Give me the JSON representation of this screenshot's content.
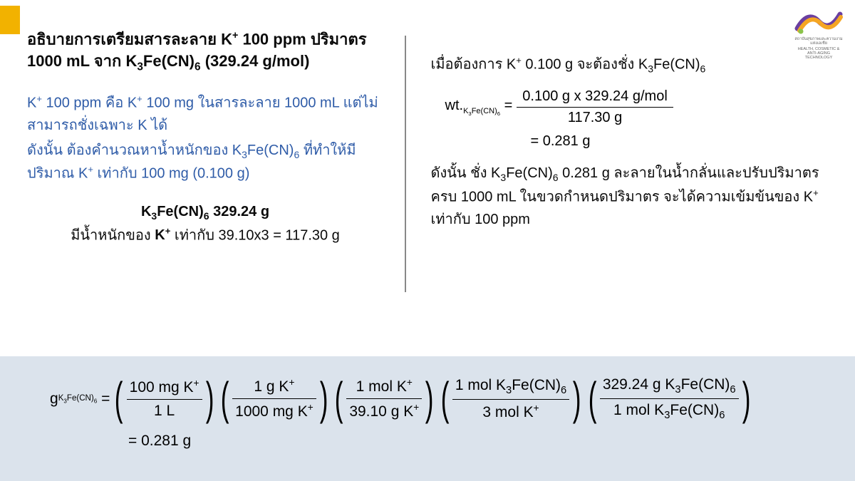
{
  "accent_color": "#f2b200",
  "logo": {
    "colors": {
      "purple": "#6b3fa0",
      "orange": "#f5a623",
      "green": "#8bc34a"
    },
    "caption1": "สถาบันสุขภาพและความงามแห่งเอเชีย",
    "caption2": "HEALTH, COSMETIC & ANTI-AGING TECHNOLOGY"
  },
  "left": {
    "title": "อธิบายการเตรียมสารละลาย K⁺ 100 ppm ปริมาตร 1000 mL จาก K₃Fe(CN)₆ (329.24 g/mol)",
    "blue1": "K⁺ 100 ppm คือ K⁺ 100 mg ในสารละลาย 1000 mL แต่ไม่สามารถชั่งเฉพาะ K ได้",
    "blue2": "ดังนั้น ต้องคำนวณหาน้ำหนักของ K₃Fe(CN)₆ ที่ทำให้มีปริมาณ K⁺ เท่ากับ 100 mg (0.100 g)",
    "center1": "K₃Fe(CN)₆ 329.24 g",
    "center2": "มีน้ำหนักของ K⁺ เท่ากับ 39.10x3 = 117.30 g"
  },
  "right": {
    "line1": "เมื่อต้องการ K⁺ 0.100 g จะต้องชั่ง K₃Fe(CN)₆",
    "eq_label": "wt.",
    "eq_sublabel": "K₃Fe(CN)₆",
    "eq_top": "0.100 g x 329.24 g/mol",
    "eq_bot": "117.30 g",
    "eq_result": "= 0.281 g",
    "conclusion": "ดังนั้น ชั่ง K₃Fe(CN)₆ 0.281 g ละลายในน้ำกลั่นและปรับปริมาตรครบ 1000 mL ในขวดกำหนดปริมาตร จะได้ความเข้มข้นของ K⁺ เท่ากับ 100 ppm"
  },
  "bottom": {
    "lhs_sym": "g",
    "lhs_sub": "K₃Fe(CN)₆",
    "factors": [
      {
        "top": "100 mg K⁺",
        "bot": "1 L"
      },
      {
        "top": "1 g K⁺",
        "bot": "1000 mg K⁺"
      },
      {
        "top": "1 mol K⁺",
        "bot": "39.10 g K⁺"
      },
      {
        "top": "1 mol K₃Fe(CN)₆",
        "bot": "3 mol K⁺"
      },
      {
        "top": "329.24 g K₃Fe(CN)₆",
        "bot": "1 mol K₃Fe(CN)₆"
      }
    ],
    "result": "= 0.281 g"
  }
}
